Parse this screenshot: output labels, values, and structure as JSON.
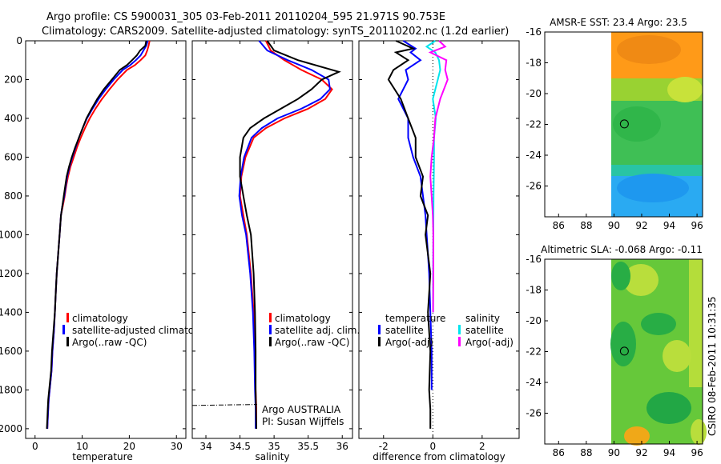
{
  "title": {
    "line1": "Argo profile: CS 5900031_305 03-Feb-2011 20110204_595 21.971S 90.753E",
    "line2": "Climatology: CARS2009. Satellite-adjusted climatology: synTS_20110202.nc (1.2d earlier)"
  },
  "side_label": "CSIRO 08-Feb-2011 10:31:35",
  "chart_data": [
    {
      "id": "temperature",
      "type": "line",
      "xlabel": "temperature",
      "xlim": [
        -2,
        32
      ],
      "ylim": [
        0,
        2050
      ],
      "y_inverted": true,
      "xticks": [
        0,
        10,
        20,
        30
      ],
      "yticks": [
        0,
        200,
        400,
        600,
        800,
        1000,
        1200,
        1400,
        1600,
        1800,
        2000
      ],
      "legend": [
        "climatology",
        "satellite-adjusted climatolog",
        "Argo(..raw -QC)"
      ],
      "series": [
        {
          "name": "climatology",
          "color": "#ff0000",
          "x": [
            24.3,
            24.1,
            23.8,
            23.4,
            22.4,
            21.2,
            19.5,
            17.5,
            15.8,
            14.2,
            12.8,
            11.6,
            10.6,
            9.7,
            8.9,
            8.2,
            7.5,
            7.0,
            6.6,
            6.3,
            5.9,
            5.5,
            5.2,
            4.9,
            4.6,
            4.4,
            4.2,
            4.0,
            3.7,
            3.5,
            3.3,
            3.1,
            2.9,
            2.8,
            2.7,
            2.6
          ],
          "y": [
            0,
            25,
            50,
            75,
            100,
            125,
            150,
            200,
            250,
            300,
            350,
            400,
            450,
            500,
            550,
            600,
            650,
            700,
            750,
            800,
            850,
            900,
            1000,
            1100,
            1200,
            1300,
            1400,
            1500,
            1600,
            1700,
            1750,
            1800,
            1850,
            1900,
            1950,
            2000
          ]
        },
        {
          "name": "satellite-adjusted climatology",
          "color": "#0000ff",
          "x": [
            23.9,
            23.6,
            23.0,
            22.4,
            21.4,
            20.2,
            18.6,
            16.7,
            15.0,
            13.5,
            12.2,
            11.0,
            10.1,
            9.3,
            8.6,
            7.9,
            7.3,
            6.8,
            6.5,
            6.2,
            5.8,
            5.5,
            5.2,
            4.9,
            4.6,
            4.4,
            4.2,
            4.0,
            3.7,
            3.5,
            3.3,
            3.1,
            2.9,
            2.8,
            2.7,
            2.6
          ],
          "y": [
            0,
            25,
            50,
            75,
            100,
            125,
            150,
            200,
            250,
            300,
            350,
            400,
            450,
            500,
            550,
            600,
            650,
            700,
            750,
            800,
            850,
            900,
            1000,
            1100,
            1200,
            1300,
            1400,
            1500,
            1600,
            1700,
            1750,
            1800,
            1850,
            1900,
            1950,
            2000
          ]
        },
        {
          "name": "Argo(..raw -QC)",
          "color": "#000000",
          "x": [
            23.6,
            23.4,
            22.3,
            21.6,
            20.6,
            19.5,
            18.0,
            16.3,
            14.6,
            13.2,
            12.0,
            10.9,
            10.1,
            9.3,
            8.5,
            7.8,
            7.2,
            6.7,
            6.4,
            6.1,
            5.8,
            5.5,
            5.2,
            4.9,
            4.6,
            4.4,
            4.2,
            3.9,
            3.6,
            3.4,
            3.2,
            3.0,
            2.8,
            2.7,
            2.6,
            2.5
          ],
          "y": [
            0,
            25,
            50,
            75,
            100,
            125,
            150,
            200,
            250,
            300,
            350,
            400,
            450,
            500,
            550,
            600,
            650,
            700,
            750,
            800,
            850,
            900,
            1000,
            1100,
            1200,
            1300,
            1400,
            1500,
            1600,
            1700,
            1750,
            1800,
            1850,
            1900,
            1950,
            2000
          ]
        }
      ]
    },
    {
      "id": "salinity",
      "type": "line",
      "xlabel": "salinity",
      "xlim": [
        33.8,
        36.15
      ],
      "ylim": [
        0,
        2050
      ],
      "y_inverted": true,
      "xticks": [
        34,
        34.5,
        35,
        35.5,
        36
      ],
      "legend": [
        "climatology",
        "satellite adj. clim.",
        "Argo(..raw -QC)"
      ],
      "annotations": [
        "Argo AUSTRALIA",
        "PI: Susan Wijffels"
      ],
      "series": [
        {
          "name": "climatology",
          "color": "#ff0000",
          "x": [
            34.88,
            34.95,
            35.15,
            35.4,
            35.7,
            35.85,
            35.75,
            35.5,
            35.15,
            34.88,
            34.7,
            34.58,
            34.52,
            34.5,
            34.55,
            34.6,
            34.66,
            34.7,
            34.72,
            34.73,
            34.74,
            34.74
          ],
          "y": [
            0,
            50,
            100,
            150,
            200,
            250,
            300,
            350,
            400,
            450,
            500,
            600,
            700,
            800,
            900,
            1000,
            1200,
            1400,
            1600,
            1800,
            1900,
            2000
          ]
        },
        {
          "name": "satellite adj. clim.",
          "color": "#0000ff",
          "x": [
            34.78,
            34.9,
            35.2,
            35.55,
            35.8,
            35.82,
            35.68,
            35.4,
            35.05,
            34.82,
            34.67,
            34.56,
            34.51,
            34.49,
            34.53,
            34.59,
            34.65,
            34.69,
            34.71,
            34.72,
            34.73,
            34.73
          ],
          "y": [
            0,
            50,
            100,
            150,
            200,
            250,
            300,
            350,
            400,
            450,
            500,
            600,
            700,
            800,
            900,
            1000,
            1200,
            1400,
            1600,
            1800,
            1900,
            2000
          ]
        },
        {
          "name": "Argo(..raw -QC)",
          "color": "#000000",
          "x": [
            34.9,
            35.0,
            35.35,
            35.95,
            35.7,
            35.55,
            35.35,
            35.1,
            34.85,
            34.65,
            34.55,
            34.5,
            34.5,
            34.55,
            34.6,
            34.66,
            34.7,
            34.72,
            34.73,
            34.73,
            34.74
          ],
          "y": [
            0,
            50,
            100,
            160,
            200,
            250,
            300,
            350,
            400,
            450,
            500,
            600,
            700,
            800,
            900,
            1000,
            1200,
            1400,
            1600,
            1800,
            2000
          ]
        },
        {
          "name": "Argo bad tail",
          "color": "#000000",
          "dashed": true,
          "x": [
            33.8,
            34.75
          ],
          "y": [
            1880,
            1875
          ]
        }
      ]
    },
    {
      "id": "difference",
      "type": "line",
      "xlabel": "difference from climatology",
      "xlim": [
        -3,
        3.5
      ],
      "ylim": [
        0,
        2050
      ],
      "y_inverted": true,
      "xticks": [
        -2,
        0,
        2
      ],
      "legend_left": [
        "temperature",
        "satellite",
        "Argo(-adj)"
      ],
      "legend_right": [
        "salinity",
        "satellite",
        "Argo(-adj)"
      ],
      "series": [
        {
          "name": "temperature satellite",
          "color": "#0000ff",
          "x": [
            -1.2,
            -0.7,
            -0.9,
            -0.5,
            -1.1,
            -1.0,
            -1.4,
            -1.0,
            -1.0,
            -0.8,
            -0.5,
            -0.4,
            -0.3,
            -0.25,
            -0.2,
            -0.15,
            -0.1,
            -0.05,
            -0.05
          ],
          "y": [
            0,
            40,
            60,
            100,
            150,
            200,
            300,
            400,
            500,
            600,
            700,
            800,
            900,
            1000,
            1100,
            1200,
            1400,
            1600,
            1800
          ]
        },
        {
          "name": "temperature Argo(-adj)",
          "color": "#000000",
          "x": [
            -1.5,
            -0.8,
            -1.5,
            -1.0,
            -1.6,
            -1.8,
            -1.3,
            -1.0,
            -0.7,
            -0.7,
            -0.4,
            -0.5,
            -0.2,
            -0.3,
            -0.1,
            -0.2,
            -0.1,
            -0.15,
            -0.1,
            -0.1,
            -0.1
          ],
          "y": [
            0,
            40,
            60,
            100,
            150,
            200,
            300,
            400,
            500,
            600,
            700,
            800,
            900,
            1000,
            1200,
            1400,
            1600,
            1800,
            1900,
            1950,
            2000
          ]
        },
        {
          "name": "salinity satellite",
          "color": "#00e5ee",
          "x": [
            0.1,
            -0.25,
            0.1,
            0.25,
            0.3,
            0.2,
            0.0,
            0.12,
            0.05,
            0.05,
            0.03,
            0.02,
            0.01,
            0.01
          ],
          "y": [
            0,
            30,
            60,
            100,
            150,
            200,
            300,
            400,
            500,
            600,
            800,
            1000,
            1200,
            1400
          ]
        },
        {
          "name": "salinity Argo(-adj)",
          "color": "#ff00ff",
          "x": [
            0.25,
            0.5,
            -0.1,
            0.55,
            0.5,
            0.6,
            0.3,
            0.1,
            0.05,
            -0.05,
            -0.1,
            -0.05,
            0.0,
            0.02,
            0.02,
            0.01
          ],
          "y": [
            0,
            30,
            60,
            100,
            150,
            200,
            300,
            400,
            500,
            600,
            700,
            800,
            900,
            1000,
            1200,
            1400
          ]
        }
      ]
    },
    {
      "id": "amsr_sst",
      "type": "heatmap",
      "title": "AMSR-E SST: 23.4  Argo: 23.5",
      "xlim": [
        85,
        96.4
      ],
      "ylim": [
        -28,
        -16
      ],
      "xticks": [
        86,
        88,
        90,
        92,
        94,
        96
      ],
      "yticks": [
        -16,
        -18,
        -20,
        -22,
        -24,
        -26
      ],
      "marker": {
        "lon": 90.75,
        "lat": -21.97
      }
    },
    {
      "id": "altimetric_sla",
      "type": "heatmap",
      "title": "Altimetric SLA: -0.068  Argo: -0.11",
      "xlim": [
        85,
        96.4
      ],
      "ylim": [
        -28,
        -16
      ],
      "xticks": [
        86,
        88,
        90,
        92,
        94,
        96
      ],
      "yticks": [
        -16,
        -18,
        -20,
        -22,
        -24,
        -26
      ],
      "marker": {
        "lon": 90.75,
        "lat": -21.97
      }
    }
  ]
}
